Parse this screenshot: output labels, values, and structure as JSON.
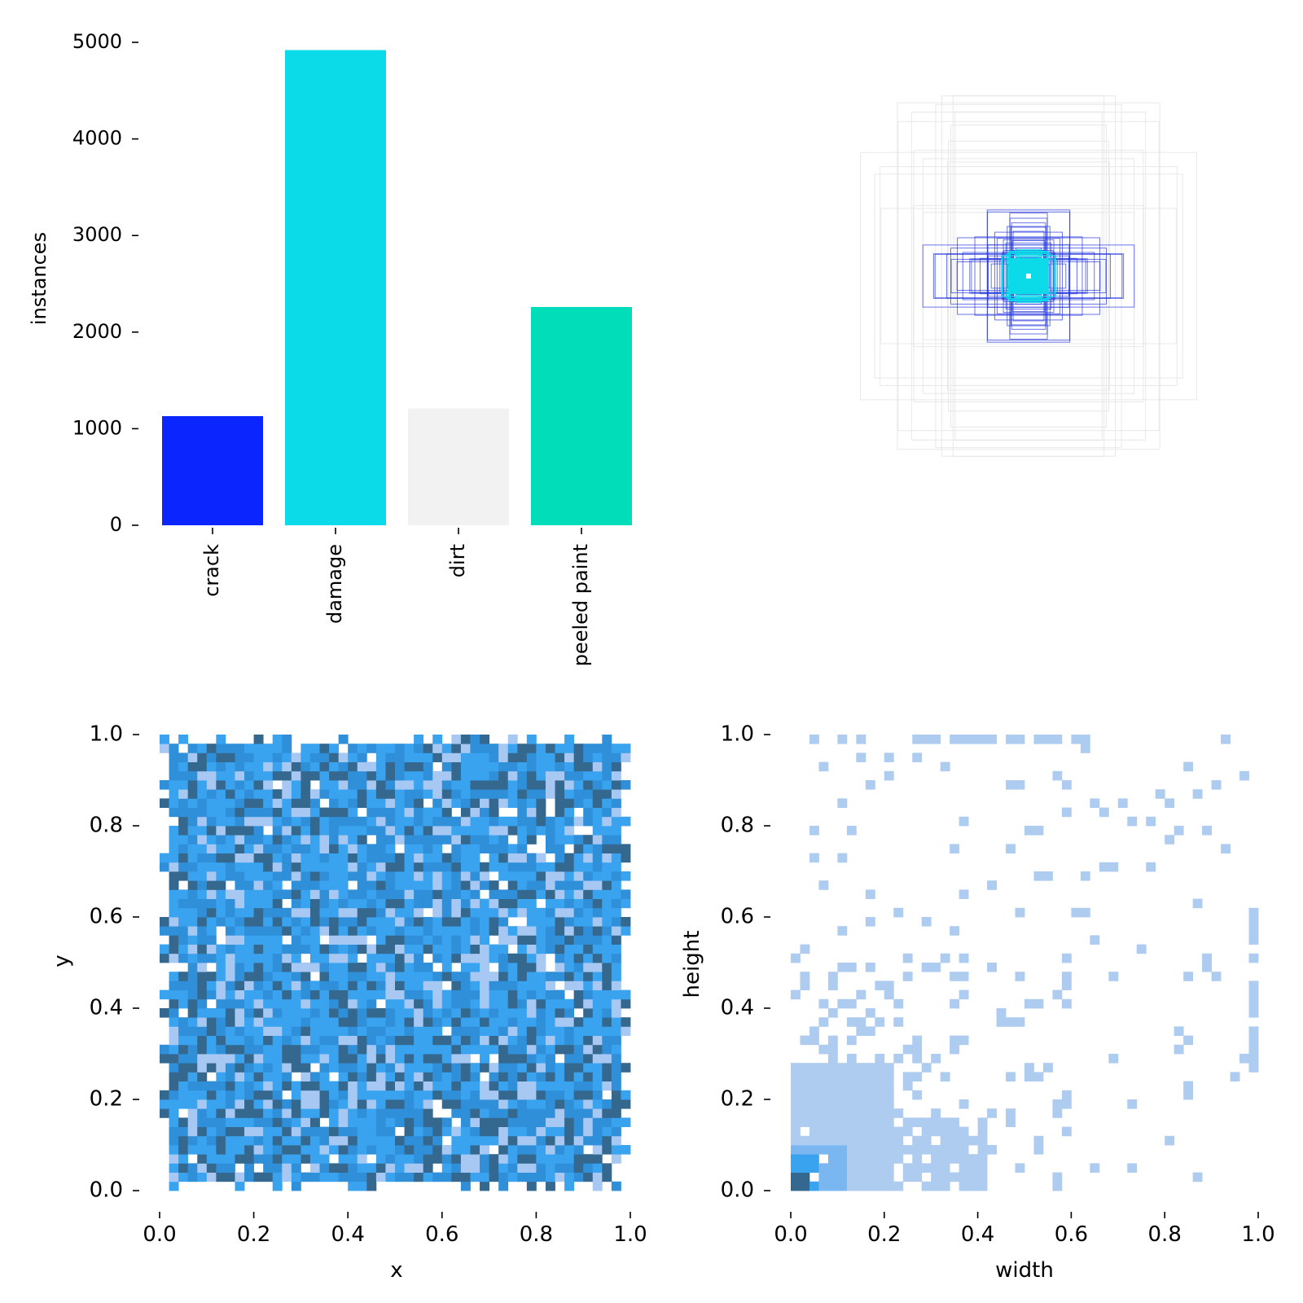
{
  "chart_data": [
    {
      "type": "bar",
      "categories": [
        "crack",
        "damage",
        "dirt",
        "peeled paint"
      ],
      "values": [
        1130,
        4920,
        1210,
        2260
      ],
      "colors": [
        "#0a25ff",
        "#0bdbe8",
        "#f2f2f2",
        "#00ddb8"
      ],
      "ylabel": "instances",
      "xlabel": "",
      "ylim": [
        0,
        5000
      ],
      "yticks": [
        "0",
        "1000",
        "2000",
        "3000",
        "4000",
        "5000"
      ],
      "grid": false
    },
    {
      "type": "scatter",
      "description_kind": "box-overlay",
      "box_sizes": [
        0.05,
        0.06,
        0.08,
        0.1,
        0.12,
        0.14,
        0.16,
        0.18,
        0.2,
        0.24,
        0.28,
        0.32,
        0.36,
        0.42,
        0.5,
        0.6
      ],
      "colors": [
        "#0bdbe8",
        "#2233dd",
        "#e8e8e8"
      ]
    },
    {
      "type": "heatmap",
      "xlabel": "x",
      "ylabel": "y",
      "xlim": [
        0,
        1
      ],
      "ylim": [
        0,
        1
      ],
      "xticks": [
        "0.0",
        "0.2",
        "0.4",
        "0.6",
        "0.8",
        "1.0"
      ],
      "yticks": [
        "0.0",
        "0.2",
        "0.4",
        "0.6",
        "0.8",
        "1.0"
      ],
      "bins": 50,
      "value_range": [
        0.0,
        1.0
      ],
      "colors": [
        "#ffffff",
        "#a7c8f2",
        "#3aa3f0",
        "#2f8fd9",
        "#34688f"
      ]
    },
    {
      "type": "heatmap",
      "xlabel": "width",
      "ylabel": "height",
      "xlim": [
        0,
        1
      ],
      "ylim": [
        0,
        1
      ],
      "xticks": [
        "0.0",
        "0.2",
        "0.4",
        "0.6",
        "0.8",
        "1.0"
      ],
      "yticks": [
        "0.0",
        "0.2",
        "0.4",
        "0.6",
        "0.8",
        "1.0"
      ],
      "bins": 50,
      "dense_region": [
        [
          0.0,
          0.0
        ],
        [
          0.3,
          0.3
        ]
      ],
      "colors": [
        "#aecbf0",
        "#7ab6f0",
        "#3aa3f0",
        "#34688f"
      ]
    }
  ]
}
